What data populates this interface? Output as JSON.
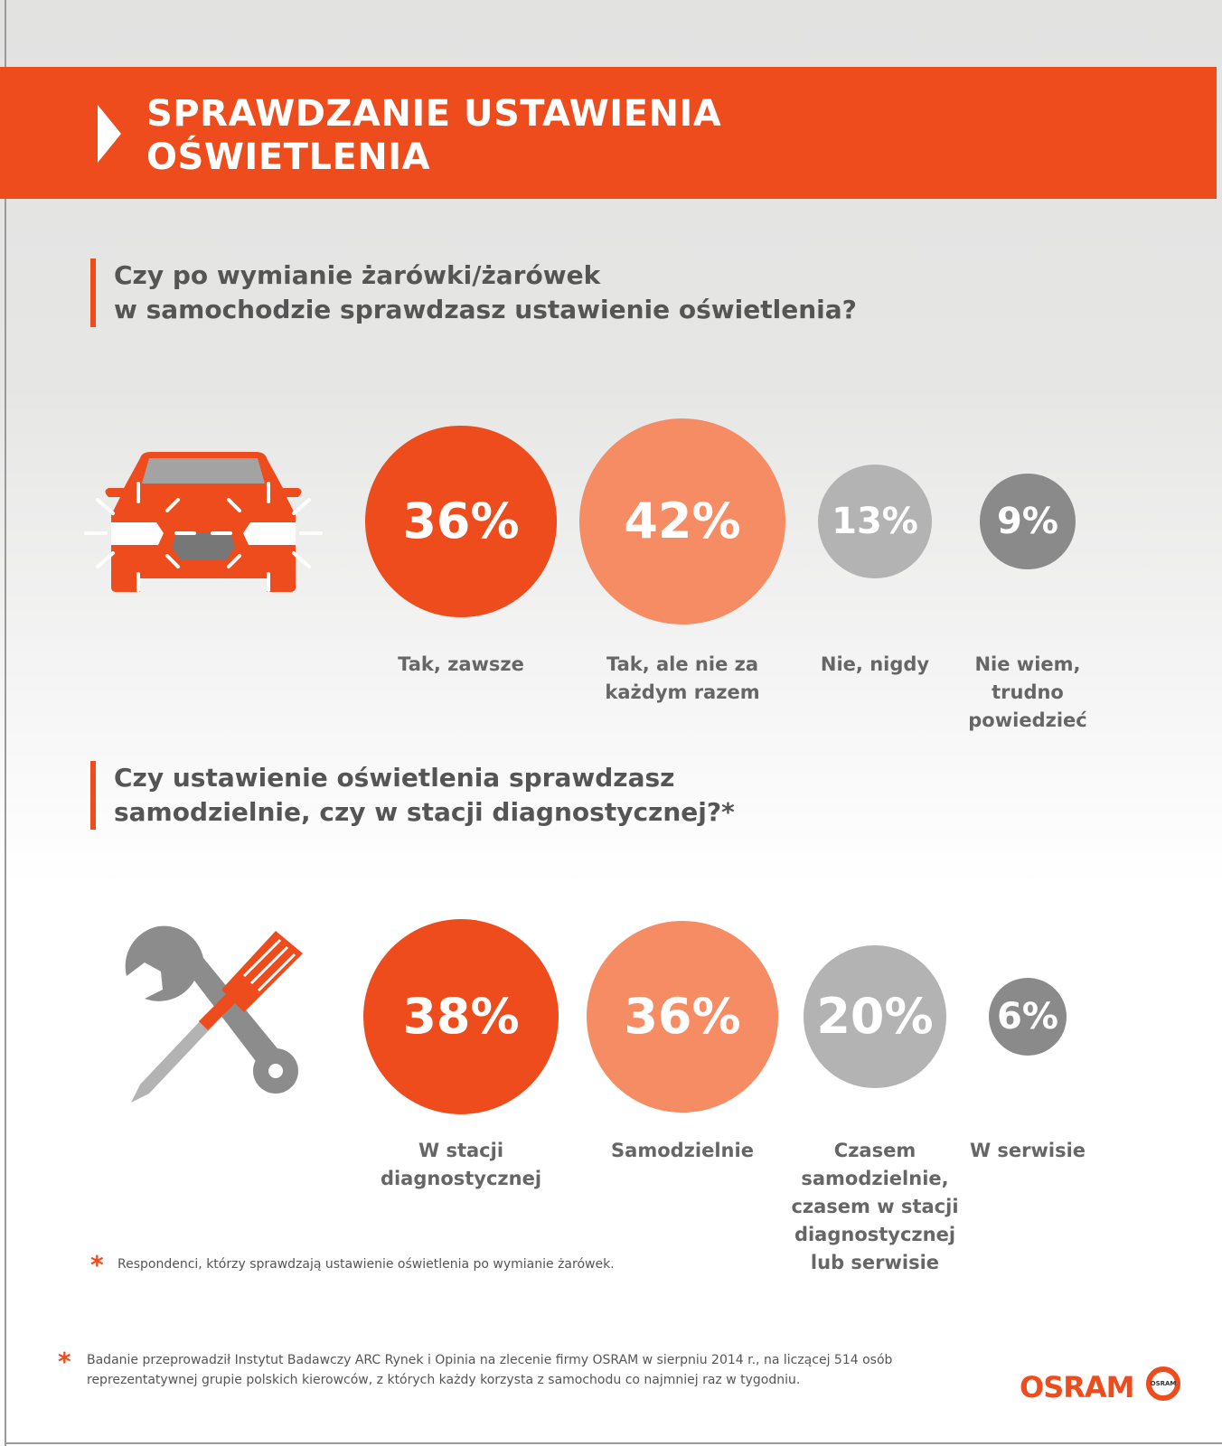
{
  "header": {
    "title_line1": "SPRAWDZANIE USTAWIENIA",
    "title_line2": "OŚWIETLENIA"
  },
  "colors": {
    "accent": "#ee4c1c",
    "light_orange": "#f58c64",
    "light_gray": "#b3b3b3",
    "dark_gray": "#8a8a8a"
  },
  "chart_data": [
    {
      "type": "bubble",
      "title_line1": "Czy po wymianie żarówki/żarówek",
      "title_line2": "w samochodzie sprawdzasz ustawienie oświetlenia?",
      "icon": "car-headlights-icon",
      "categories": [
        "Tak, zawsze",
        "Tak, ale nie za\nkażdym razem",
        "Nie, nigdy",
        "Nie wiem,\ntrudno\npowiedzieć"
      ],
      "values": [
        36,
        42,
        13,
        9
      ],
      "labels": [
        "36%",
        "42%",
        "13%",
        "9%"
      ]
    },
    {
      "type": "bubble",
      "title_line1": "Czy ustawienie oświetlenia sprawdzasz",
      "title_line2": "samodzielnie, czy w stacji diagnostycznej?*",
      "icon": "wrench-screwdriver-icon",
      "categories": [
        "W stacji\ndiagnostycznej",
        "Samodzielnie",
        "Czasem\nsamodzielnie,\nczasem w stacji\ndiagnostycznej\nlub serwisie",
        "W serwisie"
      ],
      "values": [
        38,
        36,
        20,
        6
      ],
      "labels": [
        "38%",
        "36%",
        "20%",
        "6%"
      ]
    }
  ],
  "notes": {
    "respondents": "Respondenci, którzy sprawdzają ustawienie oświetlenia po wymianie żarówek.",
    "survey_line1": "Badanie przeprowadził Instytut Badawczy ARC Rynek i Opinia na zlecenie firmy OSRAM w sierpniu 2014 r., na liczącej 514 osób",
    "survey_line2": "reprezentatywnej grupie polskich kierowców, z których każdy korzysta z samochodu co najmniej raz w tygodniu.",
    "asterisk": "*"
  },
  "logo": {
    "text": "OSRAM",
    "bulb_text": "OSRAM"
  }
}
